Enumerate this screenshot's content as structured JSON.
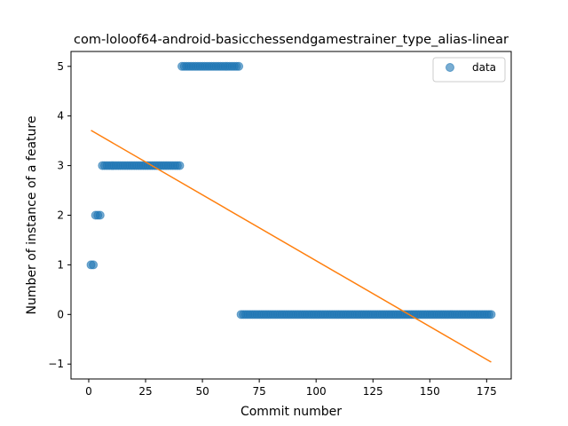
{
  "chart_data": {
    "type": "scatter",
    "title": "com-loloof64-android-basicchessendgamestrainer_type_alias-linear",
    "xlabel": "Commit number",
    "ylabel": "Number of instance of a feature",
    "xlim": [
      -7.8,
      185.8
    ],
    "ylim": [
      -1.3,
      5.3
    ],
    "xticks": [
      0,
      25,
      50,
      75,
      100,
      125,
      150,
      175
    ],
    "yticks": [
      -1,
      0,
      1,
      2,
      3,
      4,
      5
    ],
    "ytick_labels": [
      "−1",
      "0",
      "1",
      "2",
      "3",
      "4",
      "5"
    ],
    "legend": {
      "entries": [
        "data"
      ],
      "placement": "top-right"
    },
    "grid": false,
    "series": [
      {
        "name": "data",
        "kind": "scatter",
        "color": "#1f77b4",
        "segments": [
          {
            "x_start": 1,
            "x_end": 2,
            "y": 1
          },
          {
            "x_start": 3,
            "x_end": 5,
            "y": 2
          },
          {
            "x_start": 6,
            "x_end": 40,
            "y": 3
          },
          {
            "x_start": 41,
            "x_end": 66,
            "y": 5
          },
          {
            "x_start": 67,
            "x_end": 177,
            "y": 0
          }
        ]
      },
      {
        "kind": "line",
        "color": "#ff7f0e",
        "x": [
          1,
          177
        ],
        "y": [
          3.71,
          -0.96
        ]
      }
    ]
  }
}
